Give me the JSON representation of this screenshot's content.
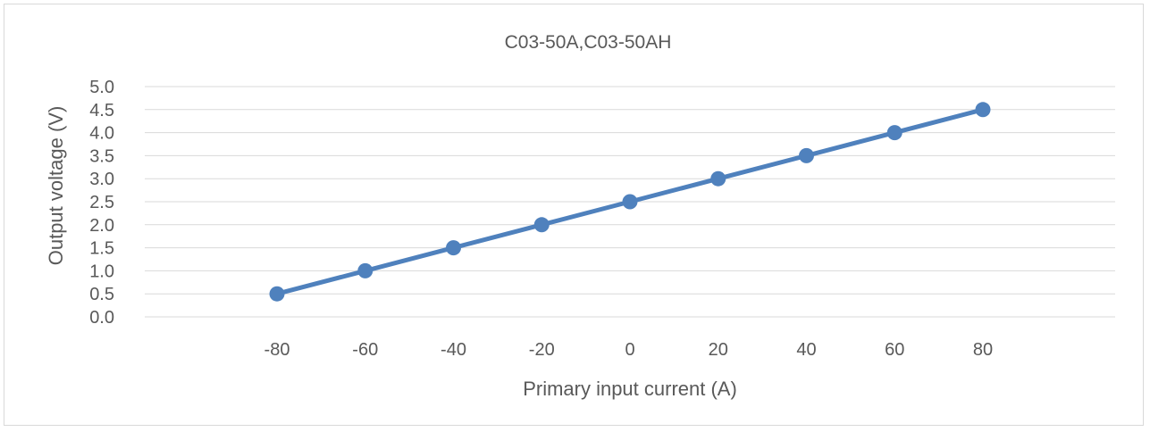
{
  "chart_data": {
    "type": "line",
    "title": "C03-50A,C03-50AH",
    "xlabel": "Primary input current (A)",
    "ylabel": "Output voltage (V)",
    "categories": [
      "-80",
      "-60",
      "-40",
      "-20",
      "0",
      "20",
      "40",
      "60",
      "80"
    ],
    "x": [
      -80,
      -60,
      -40,
      -20,
      0,
      20,
      40,
      60,
      80
    ],
    "series": [
      {
        "values": [
          0.5,
          1.0,
          1.5,
          2.0,
          2.5,
          3.0,
          3.5,
          4.0,
          4.5
        ],
        "color": "#4f81bd"
      }
    ],
    "ylim": [
      0,
      5
    ],
    "yticks": [
      "0.0",
      "0.5",
      "1.0",
      "1.5",
      "2.0",
      "2.5",
      "3.0",
      "3.5",
      "4.0",
      "4.5",
      "5.0"
    ],
    "grid": true,
    "legend": "none",
    "markers": true
  }
}
